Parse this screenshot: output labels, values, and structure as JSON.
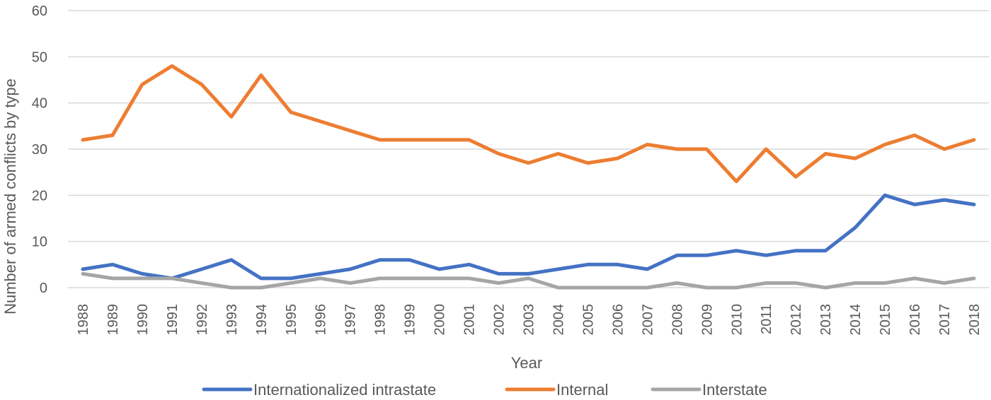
{
  "chart_data": {
    "type": "line",
    "title": "",
    "xlabel": "Year",
    "ylabel": "Number of armed conflicts by type",
    "ylim": [
      0,
      60
    ],
    "yticks": [
      0,
      10,
      20,
      30,
      40,
      50,
      60
    ],
    "grid": true,
    "legend_position": "bottom",
    "x": [
      "1988",
      "1989",
      "1990",
      "1991",
      "1992",
      "1993",
      "1994",
      "1995",
      "1996",
      "1997",
      "1998",
      "1999",
      "2000",
      "2001",
      "2002",
      "2003",
      "2004",
      "2005",
      "2006",
      "2007",
      "2008",
      "2009",
      "2010",
      "2011",
      "2012",
      "2013",
      "2014",
      "2015",
      "2016",
      "2017",
      "2018"
    ],
    "series": [
      {
        "name": "Internationalized intrastate",
        "color": "#4472c4",
        "values": [
          4,
          5,
          3,
          2,
          4,
          6,
          2,
          2,
          3,
          4,
          6,
          6,
          4,
          5,
          3,
          3,
          4,
          5,
          5,
          4,
          7,
          7,
          8,
          7,
          8,
          8,
          13,
          20,
          18,
          19,
          18
        ]
      },
      {
        "name": "Internal",
        "color": "#ed7d31",
        "values": [
          32,
          33,
          44,
          48,
          44,
          37,
          46,
          38,
          36,
          34,
          32,
          32,
          32,
          32,
          29,
          27,
          29,
          27,
          28,
          31,
          30,
          30,
          23,
          30,
          24,
          29,
          28,
          31,
          33,
          30,
          32
        ]
      },
      {
        "name": "Interstate",
        "color": "#a5a5a5",
        "values": [
          3,
          2,
          2,
          2,
          1,
          0,
          0,
          1,
          2,
          1,
          2,
          2,
          2,
          2,
          1,
          2,
          0,
          0,
          0,
          0,
          1,
          0,
          0,
          1,
          1,
          0,
          1,
          1,
          2,
          1,
          2
        ]
      }
    ]
  }
}
